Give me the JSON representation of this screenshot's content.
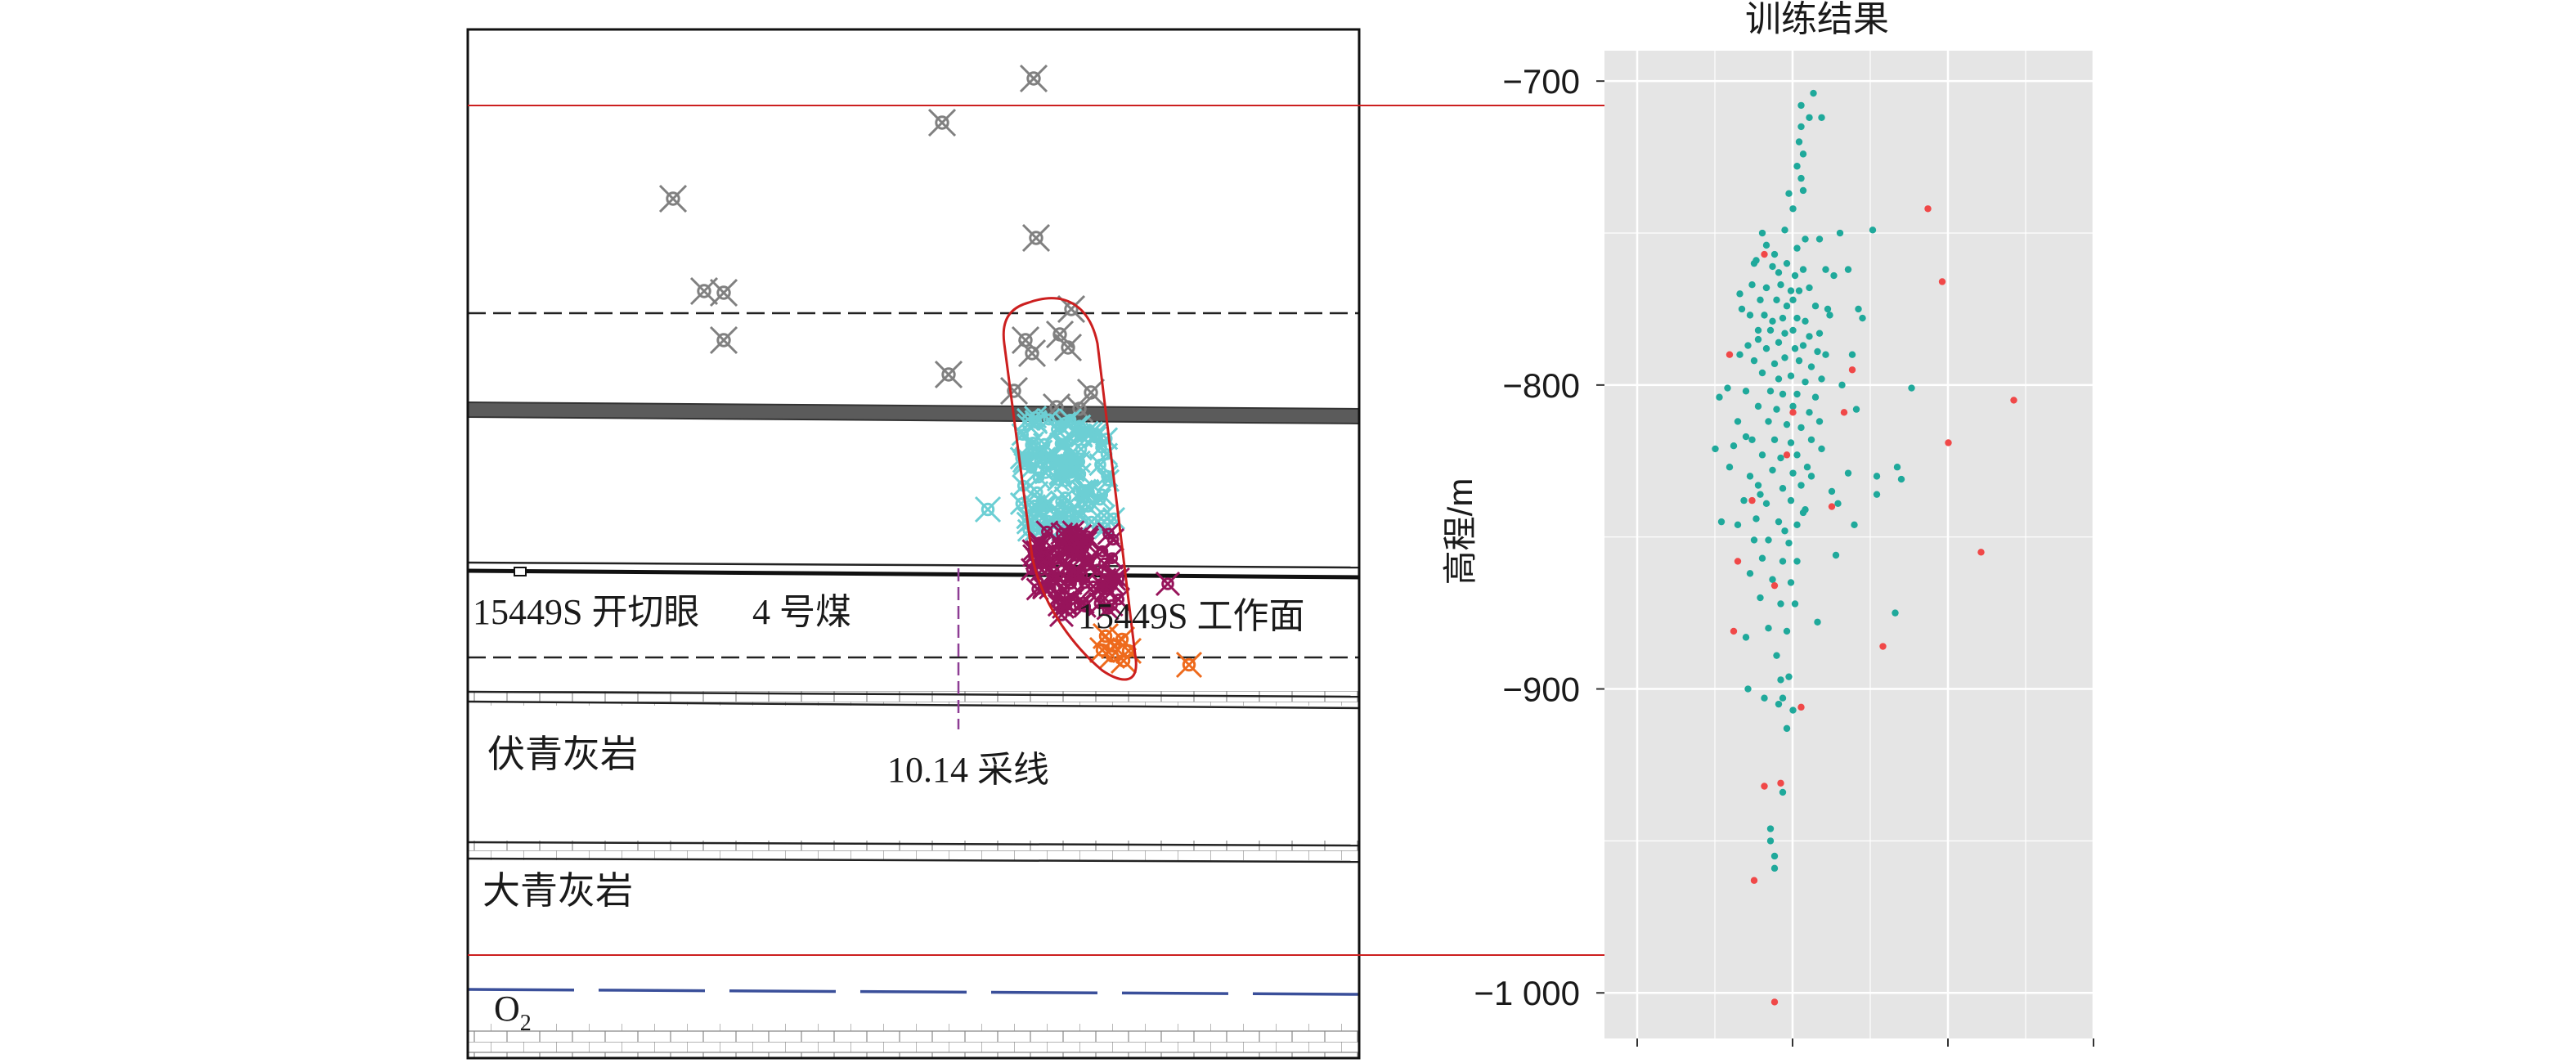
{
  "section": {
    "labels": {
      "cut_eye": "15449S 开切眼",
      "coal": "4 号煤",
      "workface": "15449S 工作面",
      "fu_limestone": "伏青灰岩",
      "line": "10.14 采线",
      "da_limestone": "大青灰岩",
      "o2_base": "O",
      "o2_sub": "2"
    },
    "colors": {
      "gray": "#808080",
      "cyan": "#6ccfd4",
      "purple": "#97145b",
      "orange": "#ee6a1c",
      "red_line": "#cc1f1f",
      "blue_line": "#3a4f9a"
    }
  },
  "chart_data": {
    "type": "scatter",
    "title": "训练结果",
    "xlabel": "",
    "ylabel": "高程/m",
    "ylim": [
      -1015,
      -690
    ],
    "y_ticks": [
      -700,
      -800,
      -900,
      -1000
    ],
    "y_tick_labels": [
      "−700",
      "−800",
      "−900",
      "−1 000"
    ],
    "grid": true,
    "background": "#e5e5e5",
    "reference_lines": [
      -709,
      -989
    ],
    "series": [
      {
        "color": "#1fa99b",
        "points": [
          [
            5,
            -708
          ],
          [
            11,
            -704
          ],
          [
            15,
            -712
          ],
          [
            9,
            -712
          ],
          [
            5,
            -715
          ],
          [
            4,
            -720
          ],
          [
            6,
            -724
          ],
          [
            3,
            -728
          ],
          [
            5,
            -732
          ],
          [
            6,
            -736
          ],
          [
            -1,
            -737
          ],
          [
            1,
            -742
          ],
          [
            -3,
            -749
          ],
          [
            -14,
            -750
          ],
          [
            -12,
            -754
          ],
          [
            -8,
            -757
          ],
          [
            3,
            -755
          ],
          [
            7,
            -752
          ],
          [
            14,
            -752
          ],
          [
            24,
            -750
          ],
          [
            -17,
            -759
          ],
          [
            -9,
            -761
          ],
          [
            -2,
            -760
          ],
          [
            -6,
            -763
          ],
          [
            2,
            -764
          ],
          [
            6,
            -762
          ],
          [
            17,
            -762
          ],
          [
            21,
            -764
          ],
          [
            -19,
            -767
          ],
          [
            -12,
            -768
          ],
          [
            -5,
            -767
          ],
          [
            0,
            -769
          ],
          [
            4,
            -769
          ],
          [
            9,
            -768
          ],
          [
            -15,
            -772
          ],
          [
            -7,
            -772
          ],
          [
            -2,
            -774
          ],
          [
            1,
            -772
          ],
          [
            12,
            -774
          ],
          [
            18,
            -775
          ],
          [
            -20,
            -777
          ],
          [
            -13,
            -777
          ],
          [
            -9,
            -779
          ],
          [
            -4,
            -778
          ],
          [
            3,
            -778
          ],
          [
            7,
            -779
          ],
          [
            19,
            -777
          ],
          [
            -16,
            -782
          ],
          [
            -10,
            -782
          ],
          [
            -3,
            -783
          ],
          [
            1,
            -782
          ],
          [
            9,
            -784
          ],
          [
            14,
            -783
          ],
          [
            -21,
            -787
          ],
          [
            -12,
            -788
          ],
          [
            -6,
            -786
          ],
          [
            2,
            -788
          ],
          [
            6,
            -787
          ],
          [
            13,
            -789
          ],
          [
            -18,
            -792
          ],
          [
            -8,
            -793
          ],
          [
            -3,
            -791
          ],
          [
            4,
            -792
          ],
          [
            10,
            -794
          ],
          [
            -14,
            -796
          ],
          [
            -6,
            -798
          ],
          [
            0,
            -797
          ],
          [
            7,
            -799
          ],
          [
            15,
            -798
          ],
          [
            -22,
            -802
          ],
          [
            -10,
            -802
          ],
          [
            -4,
            -803
          ],
          [
            3,
            -803
          ],
          [
            12,
            -804
          ],
          [
            -16,
            -807
          ],
          [
            -7,
            -808
          ],
          [
            1,
            -807
          ],
          [
            9,
            -809
          ],
          [
            -11,
            -812
          ],
          [
            -2,
            -813
          ],
          [
            5,
            -814
          ],
          [
            14,
            -812
          ],
          [
            -19,
            -818
          ],
          [
            -8,
            -818
          ],
          [
            0,
            -819
          ],
          [
            10,
            -818
          ],
          [
            -14,
            -823
          ],
          [
            -5,
            -824
          ],
          [
            3,
            -823
          ],
          [
            -9,
            -828
          ],
          [
            1,
            -829
          ],
          [
            8,
            -827
          ],
          [
            -16,
            -833
          ],
          [
            -4,
            -834
          ],
          [
            5,
            -833
          ],
          [
            -12,
            -839
          ],
          [
            0,
            -838
          ],
          [
            7,
            -841
          ],
          [
            -17,
            -844
          ],
          [
            -6,
            -845
          ],
          [
            3,
            -846
          ],
          [
            -11,
            -851
          ],
          [
            -1,
            -852
          ],
          [
            -14,
            -857
          ],
          [
            -4,
            -858
          ],
          [
            3,
            -858
          ],
          [
            -9,
            -864
          ],
          [
            0,
            -865
          ],
          [
            -15,
            -870
          ],
          [
            -5,
            -872
          ],
          [
            2,
            -872
          ],
          [
            -11,
            -880
          ],
          [
            -2,
            -881
          ],
          [
            -7,
            -889
          ],
          [
            -1,
            -896
          ],
          [
            -4,
            -903
          ],
          [
            1,
            -907
          ],
          [
            -2,
            -913
          ],
          [
            -10,
            -946
          ],
          [
            -10,
            -950
          ],
          [
            -8,
            -955
          ],
          [
            -8,
            -959
          ],
          [
            -4,
            -934
          ],
          [
            -25,
            -770
          ],
          [
            -24,
            -775
          ],
          [
            -18,
            -760
          ],
          [
            -25,
            -790
          ],
          [
            -26,
            -812
          ],
          [
            -22,
            -817
          ],
          [
            -20,
            -830
          ],
          [
            -23,
            -838
          ],
          [
            -26,
            -846
          ],
          [
            -18,
            -851
          ],
          [
            -20,
            -862
          ],
          [
            -22,
            -883
          ],
          [
            -21,
            -900
          ],
          [
            -13,
            -903
          ],
          [
            -31,
            -801
          ],
          [
            -35,
            -804
          ],
          [
            -28,
            -820
          ],
          [
            -30,
            -827
          ],
          [
            -34,
            -845
          ],
          [
            -37,
            -821
          ],
          [
            28,
            -762
          ],
          [
            33,
            -775
          ],
          [
            35,
            -778
          ],
          [
            30,
            -790
          ],
          [
            25,
            -800
          ],
          [
            32,
            -808
          ],
          [
            20,
            -835
          ],
          [
            28,
            -829
          ],
          [
            23,
            -839
          ],
          [
            31,
            -846
          ],
          [
            22,
            -856
          ],
          [
            -5,
            -897
          ],
          [
            13,
            -878
          ],
          [
            15,
            -821
          ],
          [
            10,
            -830
          ],
          [
            -15,
            -836
          ],
          [
            40,
            -749
          ],
          [
            42,
            -830
          ],
          [
            42,
            -836
          ],
          [
            52,
            -827
          ],
          [
            54,
            -831
          ],
          [
            59,
            -801
          ],
          [
            51,
            -875
          ],
          [
            17,
            -790
          ],
          [
            -6,
            -905
          ],
          [
            -12,
            -768
          ],
          [
            -16,
            -785
          ],
          [
            6,
            -842
          ],
          [
            -3,
            -848
          ]
        ]
      },
      {
        "color": "#f04848",
        "points": [
          [
            -13,
            -757
          ],
          [
            -2,
            -823
          ],
          [
            -8,
            -866
          ],
          [
            26,
            -809
          ],
          [
            1,
            -809
          ],
          [
            30,
            -795
          ],
          [
            20,
            -840
          ],
          [
            5,
            -906
          ],
          [
            -5,
            -931
          ],
          [
            -13,
            -932
          ],
          [
            -18,
            -963
          ],
          [
            -19,
            -838
          ],
          [
            45,
            -886
          ],
          [
            67,
            -742
          ],
          [
            74,
            -766
          ],
          [
            77,
            -819
          ],
          [
            93,
            -855
          ],
          [
            -26,
            -858
          ],
          [
            -30,
            -790
          ],
          [
            -28,
            -881
          ],
          [
            109,
            -805
          ],
          [
            -8,
            -1003
          ]
        ]
      }
    ]
  }
}
